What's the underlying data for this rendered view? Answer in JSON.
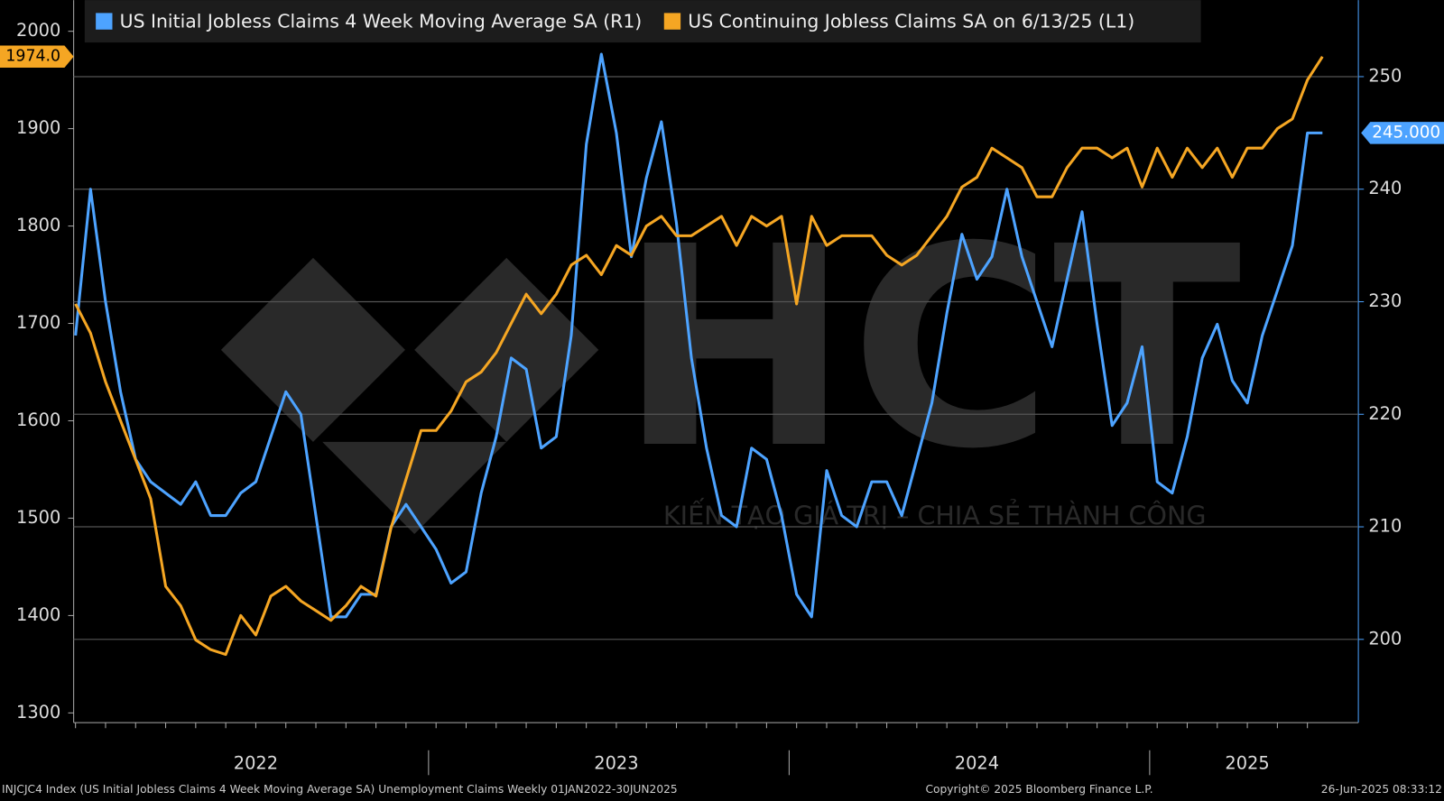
{
  "chart_data": {
    "type": "line",
    "legend": "top-left",
    "grid": true,
    "categories": [
      null,
      null,
      null,
      null,
      null,
      null,
      null,
      null,
      null,
      null,
      null,
      null,
      "2022",
      null,
      null,
      null,
      null,
      null,
      null,
      null,
      null,
      null,
      null,
      null,
      null,
      null,
      null,
      null,
      null,
      null,
      null,
      null,
      null,
      null,
      null,
      null,
      "2023",
      null,
      null,
      null,
      null,
      null,
      null,
      null,
      null,
      null,
      null,
      null,
      null,
      null,
      null,
      null,
      null,
      null,
      null,
      null,
      null,
      null,
      null,
      null,
      "2024",
      null,
      null,
      null,
      null,
      null,
      null,
      null,
      null,
      null,
      null,
      null,
      null,
      null,
      null,
      null,
      null,
      null,
      "2025",
      null,
      null,
      null,
      null,
      null
    ],
    "ylim": [
      1290,
      2032
    ],
    "yticks": [
      1300,
      1400,
      1500,
      1600,
      1700,
      1800,
      1900,
      2000
    ],
    "y2lim": [
      192.6,
      256.8
    ],
    "y2ticks": [
      200,
      210,
      220,
      230,
      240,
      250
    ],
    "series": [
      {
        "name": "US Initial Jobless Claims 4 Week Moving Average SA  (R1)",
        "color": "#4da3ff",
        "axis": "y2",
        "tag": "245.000",
        "values": [
          227,
          240,
          230,
          222,
          216,
          214,
          213,
          212,
          214,
          211,
          211,
          213,
          214,
          218,
          222,
          220,
          211,
          202,
          202,
          204,
          204,
          210,
          212,
          210,
          208,
          205,
          206,
          213,
          218,
          225,
          224,
          217,
          218,
          227,
          244,
          252,
          245,
          234,
          241,
          246,
          237,
          225,
          217,
          211,
          210,
          217,
          216,
          211,
          204,
          202,
          215,
          211,
          210,
          214,
          214,
          211,
          216,
          221,
          229,
          236,
          232,
          234,
          240,
          234,
          230,
          226,
          232,
          238,
          228,
          219,
          221,
          226,
          214,
          213,
          218,
          225,
          228,
          223,
          221,
          227,
          231,
          235,
          245,
          245
        ]
      },
      {
        "name": "US Continuing Jobless Claims SA  on 6/13/25 (L1)",
        "color": "#f5a623",
        "axis": "y",
        "tag": "1974.0",
        "values": [
          1720,
          1690,
          1640,
          1600,
          1560,
          1520,
          1430,
          1410,
          1375,
          1365,
          1360,
          1400,
          1380,
          1420,
          1430,
          1415,
          1405,
          1395,
          1410,
          1430,
          1420,
          1490,
          1540,
          1590,
          1590,
          1610,
          1640,
          1650,
          1670,
          1700,
          1730,
          1710,
          1730,
          1760,
          1770,
          1750,
          1780,
          1770,
          1800,
          1810,
          1790,
          1790,
          1800,
          1810,
          1780,
          1810,
          1800,
          1810,
          1720,
          1810,
          1780,
          1790,
          1790,
          1790,
          1770,
          1760,
          1770,
          1790,
          1810,
          1840,
          1850,
          1880,
          1870,
          1860,
          1830,
          1830,
          1860,
          1880,
          1880,
          1870,
          1880,
          1840,
          1880,
          1850,
          1880,
          1860,
          1880,
          1850,
          1880,
          1880,
          1900,
          1910,
          1950,
          1974
        ]
      }
    ],
    "watermark": {
      "logo": "HCT",
      "slogan": "KIẾN TẠO GIÁ TRỊ – CHIA SẺ THÀNH CÔNG"
    },
    "footer": {
      "source": "INJCJC4 Index (US Initial Jobless Claims 4 Week Moving Average SA) Unemployment Claims  Weekly 01JAN2022-30JUN2025",
      "copyright": "Copyright© 2025 Bloomberg Finance L.P.",
      "timestamp": "26-Jun-2025 08:33:12"
    }
  }
}
